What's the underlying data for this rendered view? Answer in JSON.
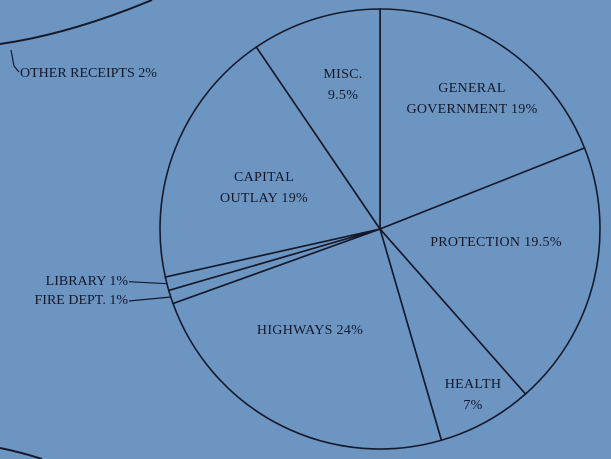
{
  "chart_data": {
    "type": "pie",
    "categories": [
      "GENERAL GOVERNMENT",
      "PROTECTION",
      "HEALTH",
      "HIGHWAYS",
      "FIRE DEPT.",
      "LIBRARY",
      "CAPITAL OUTLAY",
      "MISC."
    ],
    "values": [
      19,
      19.5,
      7,
      24,
      1,
      1,
      19,
      9.5
    ],
    "value_labels": [
      "19%",
      "19.5%",
      "7%",
      "24%",
      "1%",
      "1%",
      "19%",
      "9.5%"
    ],
    "color": "#6d95c2",
    "edge_color": "#15192a"
  },
  "fragment_label": "OTHER RECEIPTS 2%"
}
